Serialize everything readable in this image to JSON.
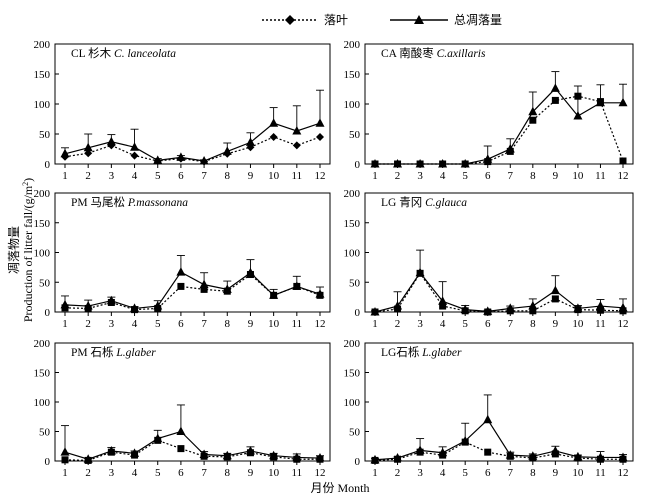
{
  "legend": {
    "litter_label": "落叶",
    "total_label": "总凋落量"
  },
  "xlabel": "月份 Month",
  "ylabel_cn": "凋落物量",
  "ylabel_en": "Production of litter fall/(g/m",
  "ylabel_sup": "2",
  "ylabel_close": ")",
  "chart_data": [
    {
      "type": "line",
      "title_prefix": "CL 杉木 ",
      "title_latin": "C. lanceolata",
      "x": [
        1,
        2,
        3,
        4,
        5,
        6,
        7,
        8,
        9,
        10,
        11,
        12
      ],
      "ylim": [
        0,
        200
      ],
      "yticks": [
        0,
        50,
        100,
        150,
        200
      ],
      "series": [
        {
          "name": "落叶",
          "values": [
            12,
            18,
            31,
            14,
            5,
            9,
            4,
            17,
            28,
            45,
            31,
            45
          ]
        },
        {
          "name": "总凋落量",
          "values": [
            17,
            27,
            37,
            28,
            6,
            11,
            5,
            21,
            36,
            68,
            55,
            68
          ],
          "error": [
            10,
            23,
            12,
            30,
            3,
            3,
            2,
            14,
            16,
            26,
            42,
            55
          ]
        }
      ]
    },
    {
      "type": "line",
      "title_prefix": "CA 南酸枣 ",
      "title_latin": "C.axillaris",
      "x": [
        1,
        2,
        3,
        4,
        5,
        6,
        7,
        8,
        9,
        10,
        11,
        12
      ],
      "ylim": [
        0,
        200
      ],
      "yticks": [
        0,
        50,
        100,
        150,
        200
      ],
      "series": [
        {
          "name": "落叶",
          "values": [
            0,
            0,
            0,
            0,
            0,
            4,
            21,
            73,
            106,
            113,
            104,
            5
          ]
        },
        {
          "name": "总凋落量",
          "values": [
            0,
            0,
            0,
            0,
            0,
            8,
            25,
            87,
            126,
            80,
            102,
            102
          ],
          "error": [
            0,
            0,
            0,
            0,
            0,
            22,
            17,
            33,
            28,
            50,
            30,
            31
          ]
        }
      ]
    },
    {
      "type": "line",
      "title_prefix": "PM 马尾松 ",
      "title_latin": "P.massonana",
      "x": [
        1,
        2,
        3,
        4,
        5,
        6,
        7,
        8,
        9,
        10,
        11,
        12
      ],
      "ylim": [
        0,
        200
      ],
      "yticks": [
        0,
        50,
        100,
        150,
        200
      ],
      "series": [
        {
          "name": "落叶",
          "values": [
            7,
            6,
            16,
            4,
            6,
            43,
            38,
            35,
            63,
            28,
            43,
            28
          ]
        },
        {
          "name": "总凋落量",
          "values": [
            12,
            10,
            19,
            6,
            10,
            67,
            46,
            38,
            66,
            28,
            43,
            30
          ],
          "error": [
            15,
            10,
            6,
            3,
            9,
            28,
            20,
            14,
            22,
            10,
            17,
            12
          ]
        }
      ]
    },
    {
      "type": "line",
      "title_prefix": "LG 青冈 ",
      "title_latin": "C.glauca",
      "x": [
        1,
        2,
        3,
        4,
        5,
        6,
        7,
        8,
        9,
        10,
        11,
        12
      ],
      "ylim": [
        0,
        200
      ],
      "yticks": [
        0,
        50,
        100,
        150,
        200
      ],
      "series": [
        {
          "name": "落叶",
          "values": [
            0,
            5,
            65,
            10,
            2,
            0,
            2,
            2,
            22,
            4,
            3,
            2
          ]
        },
        {
          "name": "总凋落量",
          "values": [
            0,
            10,
            66,
            18,
            4,
            1,
            6,
            10,
            36,
            6,
            10,
            7
          ],
          "error": [
            2,
            24,
            38,
            33,
            7,
            2,
            4,
            12,
            25,
            5,
            11,
            15
          ]
        }
      ]
    },
    {
      "type": "line",
      "title_prefix": "PM 石栎 ",
      "title_latin": "L.glaber",
      "x": [
        1,
        2,
        3,
        4,
        5,
        6,
        7,
        8,
        9,
        10,
        11,
        12
      ],
      "ylim": [
        0,
        200
      ],
      "yticks": [
        0,
        50,
        100,
        150,
        200
      ],
      "series": [
        {
          "name": "落叶",
          "values": [
            2,
            1,
            15,
            10,
            35,
            21,
            8,
            7,
            14,
            7,
            3,
            3
          ]
        },
        {
          "name": "总凋落量",
          "values": [
            15,
            3,
            17,
            13,
            38,
            50,
            11,
            9,
            17,
            9,
            6,
            5
          ],
          "error": [
            45,
            1,
            6,
            4,
            14,
            45,
            5,
            4,
            7,
            4,
            6,
            4
          ]
        }
      ]
    },
    {
      "type": "line",
      "title_prefix": "LG石栎 ",
      "title_latin": "L.glaber",
      "x": [
        1,
        2,
        3,
        4,
        5,
        6,
        7,
        8,
        9,
        10,
        11,
        12
      ],
      "ylim": [
        0,
        200
      ],
      "yticks": [
        0,
        50,
        100,
        150,
        200
      ],
      "series": [
        {
          "name": "落叶",
          "values": [
            1,
            3,
            15,
            10,
            32,
            15,
            8,
            5,
            12,
            5,
            3,
            3
          ]
        },
        {
          "name": "总凋落量",
          "values": [
            2,
            5,
            18,
            14,
            34,
            70,
            10,
            8,
            17,
            7,
            6,
            6
          ],
          "error": [
            2,
            2,
            20,
            10,
            30,
            42,
            5,
            4,
            8,
            3,
            10,
            5
          ]
        }
      ]
    }
  ]
}
